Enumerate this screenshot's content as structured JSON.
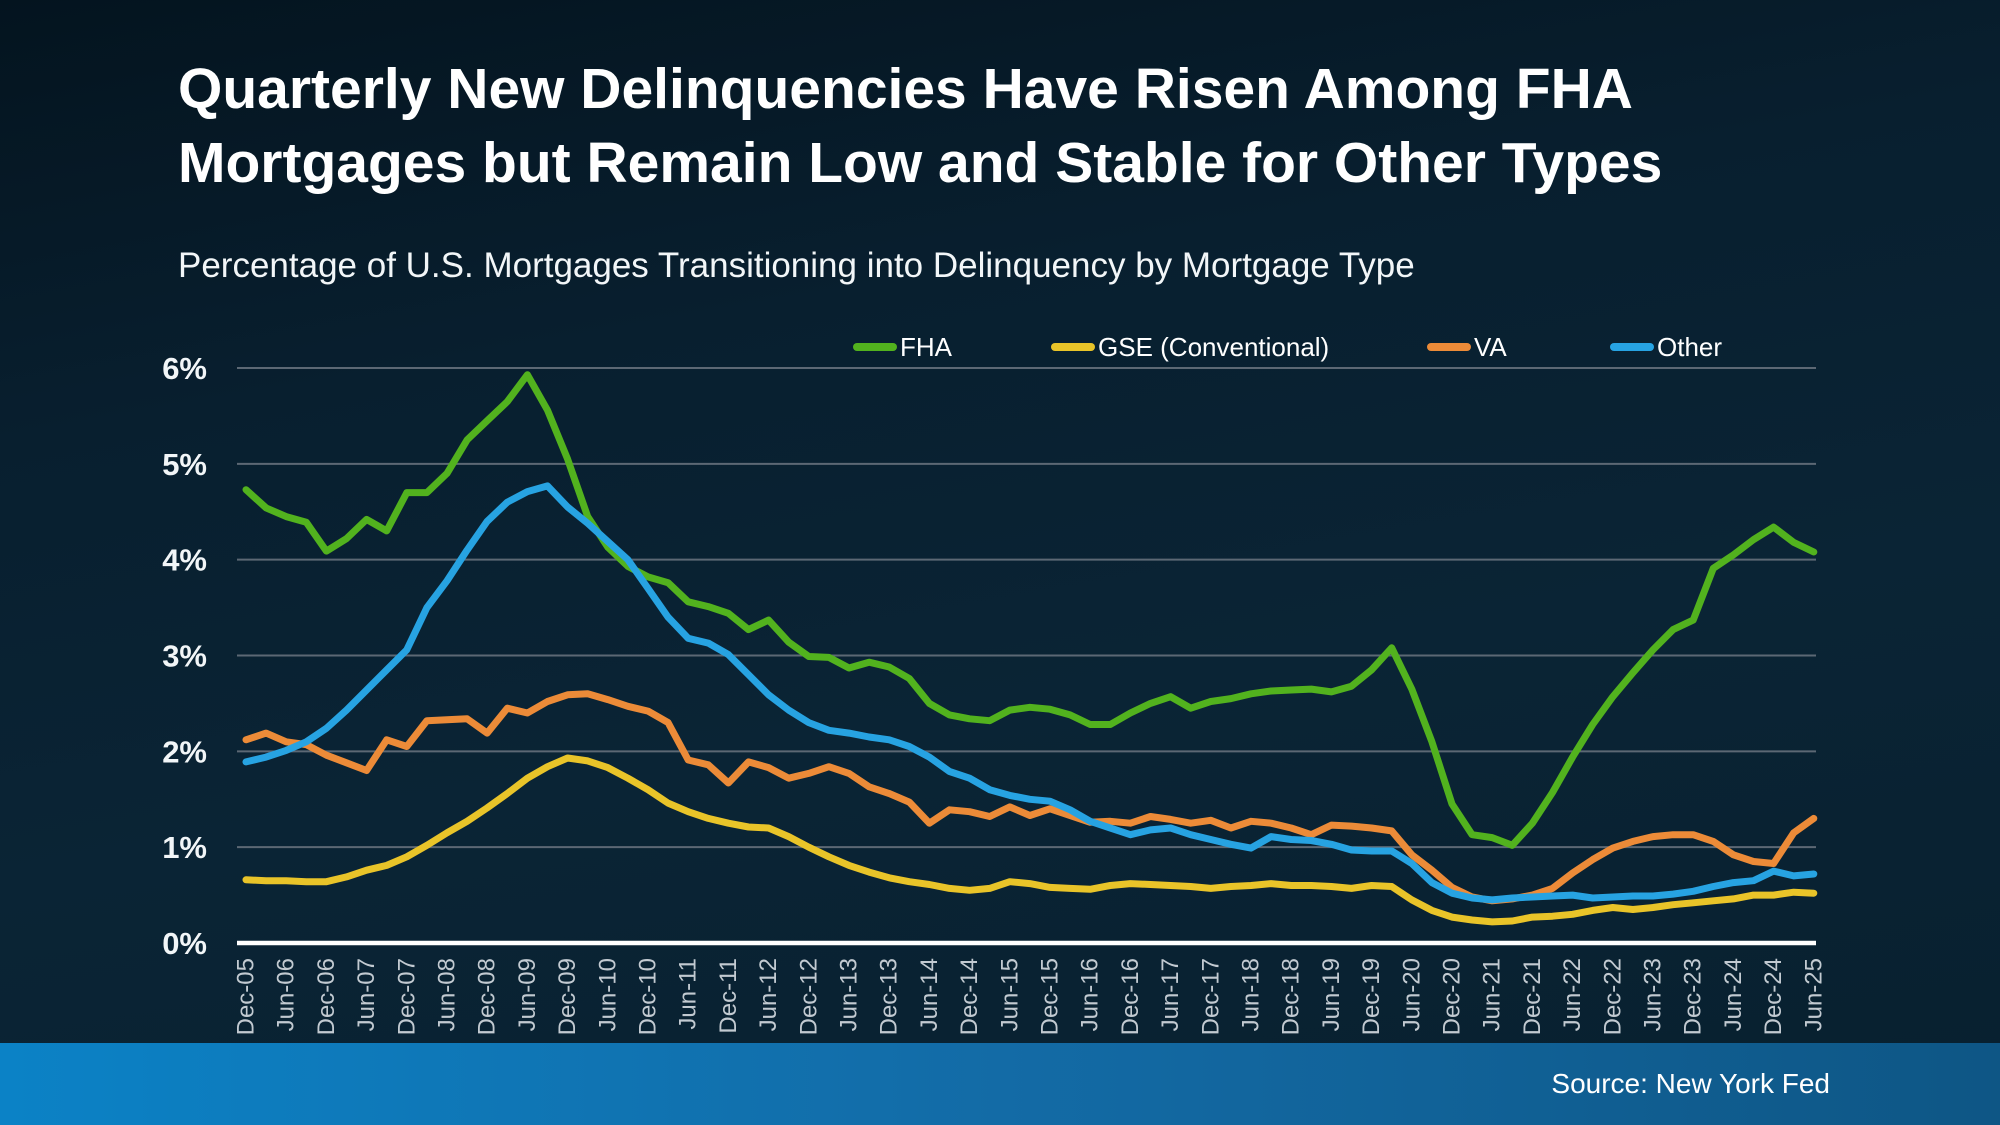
{
  "title": {
    "line1": "Quarterly New Delinquencies Have Risen Among FHA",
    "line2": "Mortgages but Remain Low and Stable for Other Types"
  },
  "subtitle": "Percentage of U.S. Mortgages Transitioning into Delinquency by Mortgage Type",
  "source": "Source: New York Fed",
  "colors": {
    "background": "#0a2435",
    "gridline": "#5c6874",
    "zero_axis": "#ffffff",
    "y_tick_text": "#f2f6f8",
    "x_tick_text": "#c2cad1",
    "footer_left": "#0b82c6",
    "footer_right": "#0e5685"
  },
  "chart_data": {
    "type": "line",
    "title": "Percentage of U.S. Mortgages Transitioning into Delinquency by Mortgage Type",
    "xlabel": "",
    "ylabel": "",
    "ylim": [
      0,
      6
    ],
    "grid": true,
    "legend_position": "top",
    "y_tick_labels": [
      "0%",
      "1%",
      "2%",
      "3%",
      "4%",
      "5%",
      "6%"
    ],
    "x_period": "quarterly",
    "x_tick_labels": [
      "Dec-05",
      "Jun-06",
      "Dec-06",
      "Jun-07",
      "Dec-07",
      "Jun-08",
      "Dec-08",
      "Jun-09",
      "Dec-09",
      "Jun-10",
      "Dec-10",
      "Jun-11",
      "Dec-11",
      "Jun-12",
      "Dec-12",
      "Jun-13",
      "Dec-13",
      "Jun-14",
      "Dec-14",
      "Jun-15",
      "Dec-15",
      "Jun-16",
      "Dec-16",
      "Jun-17",
      "Dec-17",
      "Jun-18",
      "Dec-18",
      "Jun-19",
      "Dec-19",
      "Jun-20",
      "Dec-20",
      "Jun-21",
      "Dec-21",
      "Jun-22",
      "Dec-22",
      "Jun-23",
      "Dec-23",
      "Jun-24",
      "Dec-24",
      "Jun-25"
    ],
    "series": [
      {
        "name": "FHA",
        "color": "#52b21e",
        "values": [
          4.73,
          4.54,
          4.45,
          4.39,
          4.09,
          4.22,
          4.42,
          4.3,
          4.7,
          4.7,
          4.9,
          5.25,
          5.45,
          5.65,
          5.93,
          5.56,
          5.05,
          4.45,
          4.13,
          3.93,
          3.82,
          3.76,
          3.56,
          3.51,
          3.44,
          3.27,
          3.37,
          3.14,
          2.99,
          2.98,
          2.87,
          2.93,
          2.88,
          2.76,
          2.5,
          2.38,
          2.34,
          2.32,
          2.43,
          2.46,
          2.44,
          2.38,
          2.28,
          2.28,
          2.4,
          2.5,
          2.57,
          2.45,
          2.52,
          2.55,
          2.6,
          2.63,
          2.64,
          2.65,
          2.62,
          2.68,
          2.85,
          3.08,
          2.65,
          2.1,
          1.45,
          1.13,
          1.1,
          1.02,
          1.25,
          1.57,
          1.94,
          2.28,
          2.57,
          2.82,
          3.06,
          3.27,
          3.37,
          3.91,
          4.05,
          4.21,
          4.34,
          4.18,
          4.08
        ]
      },
      {
        "name": "GSE (Conventional)",
        "color": "#e9c429",
        "values": [
          0.66,
          0.65,
          0.65,
          0.64,
          0.64,
          0.69,
          0.76,
          0.81,
          0.9,
          1.02,
          1.15,
          1.27,
          1.41,
          1.56,
          1.72,
          1.84,
          1.93,
          1.9,
          1.83,
          1.72,
          1.6,
          1.46,
          1.37,
          1.3,
          1.25,
          1.21,
          1.2,
          1.11,
          1.0,
          0.9,
          0.81,
          0.74,
          0.68,
          0.64,
          0.61,
          0.57,
          0.55,
          0.57,
          0.64,
          0.62,
          0.58,
          0.57,
          0.56,
          0.6,
          0.62,
          0.61,
          0.6,
          0.59,
          0.57,
          0.59,
          0.6,
          0.62,
          0.6,
          0.6,
          0.59,
          0.57,
          0.6,
          0.59,
          0.45,
          0.34,
          0.27,
          0.24,
          0.22,
          0.23,
          0.27,
          0.28,
          0.3,
          0.34,
          0.37,
          0.35,
          0.37,
          0.4,
          0.42,
          0.44,
          0.46,
          0.5,
          0.5,
          0.53,
          0.52
        ]
      },
      {
        "name": "VA",
        "color": "#ec8b38",
        "values": [
          2.12,
          2.19,
          2.1,
          2.07,
          1.96,
          1.88,
          1.8,
          2.12,
          2.05,
          2.32,
          2.33,
          2.34,
          2.19,
          2.45,
          2.4,
          2.52,
          2.59,
          2.6,
          2.54,
          2.47,
          2.42,
          2.3,
          1.91,
          1.86,
          1.67,
          1.89,
          1.83,
          1.72,
          1.77,
          1.84,
          1.77,
          1.63,
          1.56,
          1.47,
          1.25,
          1.39,
          1.37,
          1.32,
          1.42,
          1.33,
          1.4,
          1.33,
          1.26,
          1.27,
          1.25,
          1.32,
          1.29,
          1.25,
          1.28,
          1.2,
          1.27,
          1.25,
          1.2,
          1.13,
          1.23,
          1.22,
          1.2,
          1.17,
          0.92,
          0.76,
          0.58,
          0.48,
          0.44,
          0.46,
          0.5,
          0.57,
          0.73,
          0.87,
          0.99,
          1.06,
          1.11,
          1.13,
          1.13,
          1.06,
          0.92,
          0.85,
          0.83,
          1.15,
          1.3
        ]
      },
      {
        "name": "Other",
        "color": "#27a3e2",
        "values": [
          1.89,
          1.94,
          2.01,
          2.1,
          2.24,
          2.43,
          2.64,
          2.85,
          3.06,
          3.5,
          3.78,
          4.1,
          4.4,
          4.6,
          4.71,
          4.77,
          4.55,
          4.38,
          4.19,
          4.0,
          3.7,
          3.4,
          3.18,
          3.13,
          3.01,
          2.8,
          2.59,
          2.43,
          2.3,
          2.22,
          2.19,
          2.15,
          2.12,
          2.05,
          1.94,
          1.79,
          1.72,
          1.6,
          1.54,
          1.5,
          1.48,
          1.39,
          1.27,
          1.2,
          1.13,
          1.18,
          1.2,
          1.13,
          1.08,
          1.03,
          0.99,
          1.11,
          1.08,
          1.07,
          1.03,
          0.97,
          0.96,
          0.96,
          0.83,
          0.63,
          0.52,
          0.47,
          0.45,
          0.47,
          0.48,
          0.49,
          0.5,
          0.47,
          0.48,
          0.49,
          0.49,
          0.51,
          0.54,
          0.59,
          0.63,
          0.65,
          0.75,
          0.7,
          0.72
        ]
      }
    ]
  }
}
